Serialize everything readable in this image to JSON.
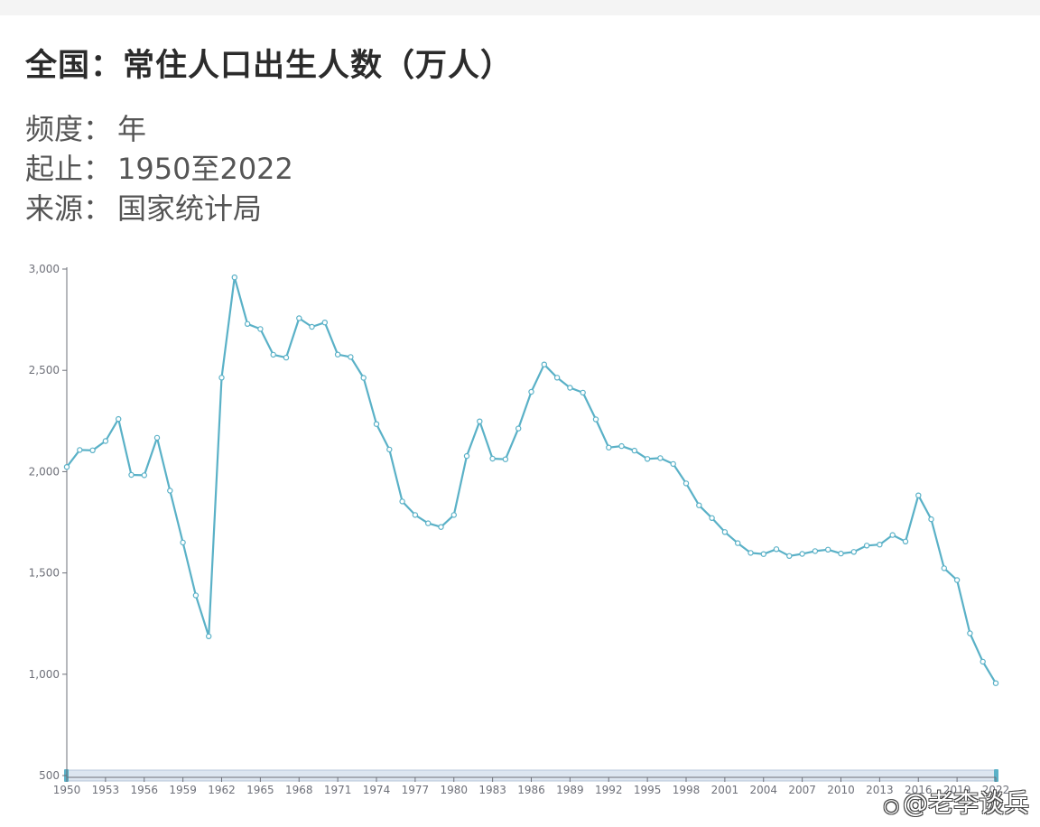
{
  "header": {
    "title": "全国：常住人口出生人数（万人）",
    "frequency_key": "频度：",
    "frequency_val": "年",
    "range_key": "起止：",
    "range_val": "1950至2022",
    "source_key": "来源：",
    "source_val": "国家统计局"
  },
  "watermark": {
    "text": "@老李谈兵"
  },
  "colors": {
    "line": "#5ab1c7",
    "axis": "#6e7079",
    "slider": "#b7c7da"
  },
  "chart_data": {
    "type": "line",
    "title": "全国：常住人口出生人数（万人）",
    "xlabel": "",
    "ylabel": "",
    "ylim": [
      500,
      3000
    ],
    "y_ticks": [
      "500",
      "1,000",
      "1,500",
      "2,000",
      "2,500",
      "3,000"
    ],
    "x_ticks": [
      "1950",
      "1953",
      "1956",
      "1959",
      "1962",
      "1965",
      "1968",
      "1971",
      "1974",
      "1977",
      "1980",
      "1983",
      "1986",
      "1989",
      "1992",
      "1995",
      "1998",
      "2001",
      "2004",
      "2007",
      "2010",
      "2013",
      "2016",
      "2019",
      "2022"
    ],
    "grid": false,
    "x": [
      1950,
      1951,
      1952,
      1953,
      1954,
      1955,
      1956,
      1957,
      1958,
      1959,
      1960,
      1961,
      1962,
      1963,
      1964,
      1965,
      1966,
      1967,
      1968,
      1969,
      1970,
      1971,
      1972,
      1973,
      1974,
      1975,
      1976,
      1977,
      1978,
      1979,
      1980,
      1981,
      1982,
      1983,
      1984,
      1985,
      1986,
      1987,
      1988,
      1989,
      1990,
      1991,
      1992,
      1993,
      1994,
      1995,
      1996,
      1997,
      1998,
      1999,
      2000,
      2001,
      2002,
      2003,
      2004,
      2005,
      2006,
      2007,
      2008,
      2009,
      2010,
      2011,
      2012,
      2013,
      2014,
      2015,
      2016,
      2017,
      2018,
      2019,
      2020,
      2021,
      2022
    ],
    "series": [
      {
        "values": [
          2023,
          2107,
          2105,
          2151,
          2260,
          1984,
          1982,
          2167,
          1906,
          1650,
          1389,
          1187,
          2464,
          2959,
          2729,
          2704,
          2577,
          2563,
          2757,
          2715,
          2736,
          2578,
          2566,
          2463,
          2235,
          2109,
          1853,
          1786,
          1745,
          1727,
          1786,
          2077,
          2248,
          2064,
          2061,
          2213,
          2394,
          2529,
          2464,
          2414,
          2390,
          2258,
          2119,
          2126,
          2104,
          2063,
          2067,
          2038,
          1942,
          1834,
          1771,
          1702,
          1647,
          1599,
          1593,
          1617,
          1584,
          1594,
          1608,
          1615,
          1596,
          1604,
          1635,
          1640,
          1687,
          1655,
          1883,
          1765,
          1523,
          1465,
          1202,
          1062,
          956
        ]
      }
    ]
  }
}
